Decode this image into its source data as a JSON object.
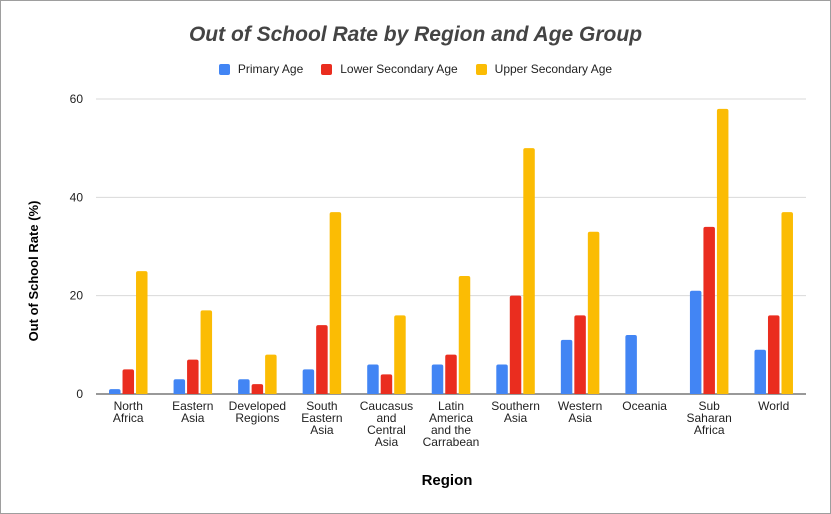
{
  "chart_data": {
    "type": "bar",
    "title": "Out of School Rate by Region and Age Group",
    "xlabel": "Region",
    "ylabel": "Out of School Rate (%)",
    "ylim": [
      0,
      60
    ],
    "yticks": [
      0,
      20,
      40,
      60
    ],
    "grid": true,
    "legend_position": "top",
    "categories": [
      [
        "North",
        "Africa"
      ],
      [
        "Eastern",
        "Asia"
      ],
      [
        "Developed",
        "Regions"
      ],
      [
        "South",
        "Eastern",
        "Asia"
      ],
      [
        "Caucasus",
        "and",
        "Central",
        "Asia"
      ],
      [
        "Latin",
        "America",
        "and the",
        "Carrabean"
      ],
      [
        "Southern",
        "Asia"
      ],
      [
        "Western",
        "Asia"
      ],
      [
        "Oceania"
      ],
      [
        "Sub",
        "Saharan",
        "Africa"
      ],
      [
        "World"
      ]
    ],
    "series": [
      {
        "name": "Primary Age",
        "color": "#4285f4",
        "values": [
          1,
          3,
          3,
          5,
          6,
          6,
          6,
          11,
          12,
          21,
          9
        ]
      },
      {
        "name": "Lower Secondary Age",
        "color": "#ea2d1f",
        "values": [
          5,
          7,
          2,
          14,
          4,
          8,
          20,
          16,
          0,
          34,
          16
        ]
      },
      {
        "name": "Upper Secondary Age",
        "color": "#fbbc04",
        "values": [
          25,
          17,
          8,
          37,
          16,
          24,
          50,
          33,
          0,
          58,
          37
        ]
      }
    ]
  }
}
